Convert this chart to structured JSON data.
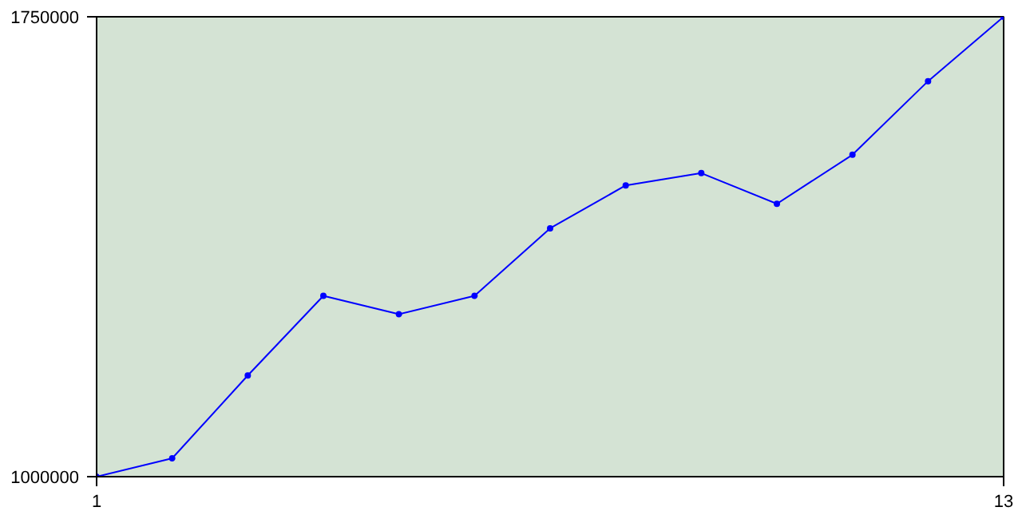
{
  "chart_data": {
    "type": "line",
    "x": [
      1,
      2,
      3,
      4,
      5,
      6,
      7,
      8,
      9,
      10,
      11,
      12,
      13
    ],
    "series": [
      {
        "color": "#0000ff",
        "values": [
          1000000,
          1030000,
          1165000,
          1295000,
          1265000,
          1295000,
          1405000,
          1475000,
          1495000,
          1445000,
          1525000,
          1645000,
          1750000
        ]
      }
    ],
    "xlim": [
      1,
      13
    ],
    "xticks": [
      1,
      13
    ],
    "ylim": [
      1000000,
      1750000
    ],
    "yticks": [
      1000000,
      1750000
    ],
    "marker": "circle",
    "line_style": "solid"
  }
}
